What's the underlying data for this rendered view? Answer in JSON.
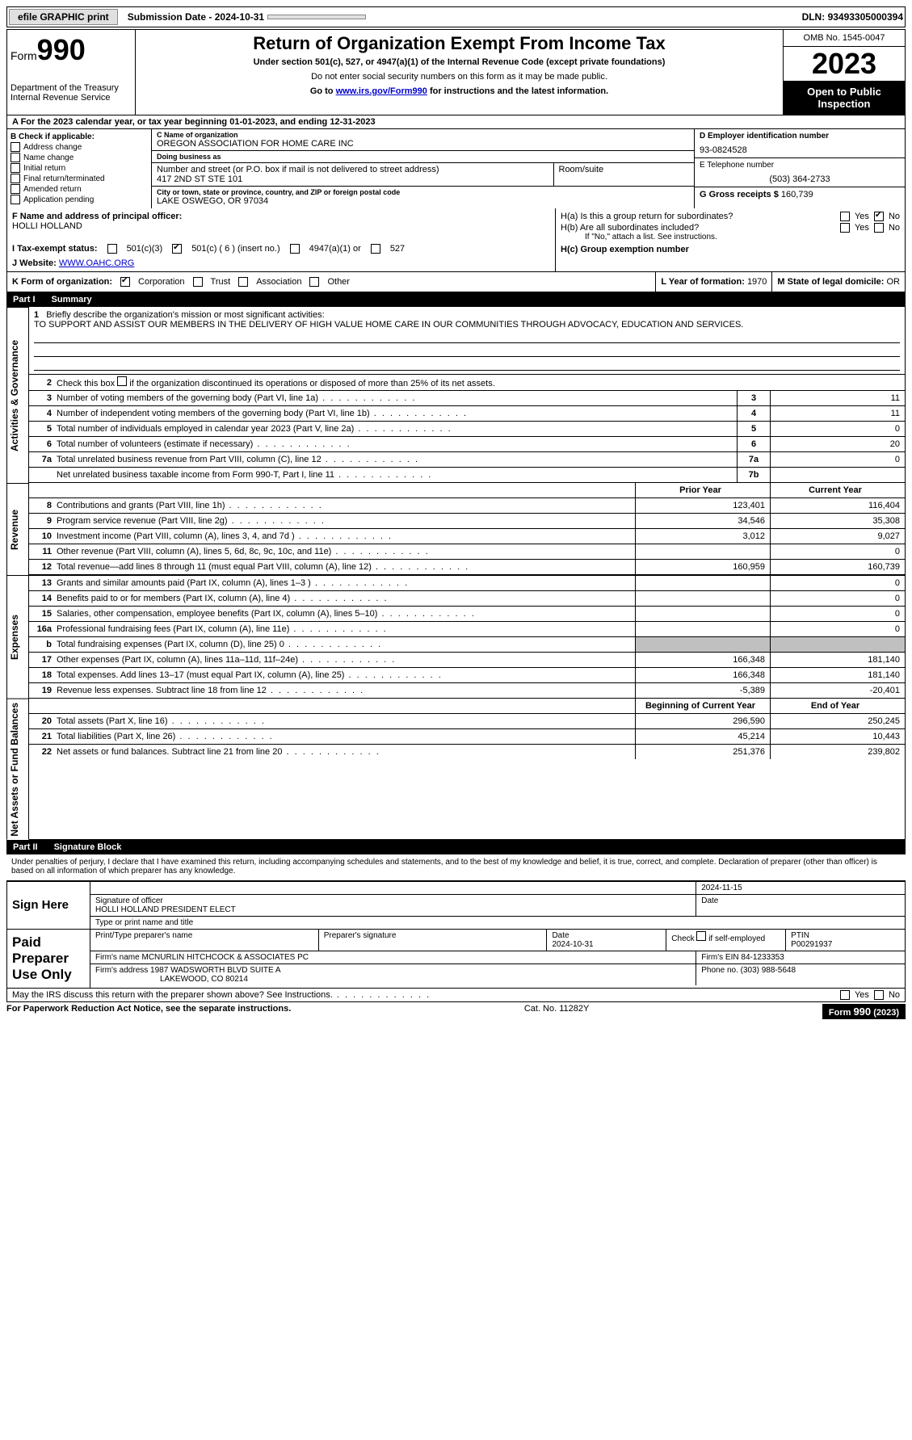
{
  "topbar": {
    "efile": "efile GRAPHIC print",
    "submission_label": "Submission Date - ",
    "submission_date": "2024-10-31",
    "dln_label": "DLN: ",
    "dln": "93493305000394"
  },
  "header": {
    "form_label": "Form",
    "form_number": "990",
    "title": "Return of Organization Exempt From Income Tax",
    "subtitle": "Under section 501(c), 527, or 4947(a)(1) of the Internal Revenue Code (except private foundations)",
    "note1": "Do not enter social security numbers on this form as it may be made public.",
    "note2_pre": "Go to ",
    "note2_link": "www.irs.gov/Form990",
    "note2_post": " for instructions and the latest information.",
    "dept": "Department of the Treasury",
    "irs": "Internal Revenue Service",
    "omb": "OMB No. 1545-0047",
    "year": "2023",
    "inspection": "Open to Public Inspection"
  },
  "rowA": {
    "text_pre": "A For the 2023 calendar year, or tax year beginning ",
    "begin": "01-01-2023",
    "mid": ", and ending ",
    "end": "12-31-2023"
  },
  "colB": {
    "label": "B Check if applicable:",
    "opts": [
      "Address change",
      "Name change",
      "Initial return",
      "Final return/terminated",
      "Amended return",
      "Application pending"
    ]
  },
  "colC": {
    "name_label": "C Name of organization",
    "name": "OREGON ASSOCIATION FOR HOME CARE INC",
    "dba_label": "Doing business as",
    "dba": "",
    "street_label": "Number and street (or P.O. box if mail is not delivered to street address)",
    "room_label": "Room/suite",
    "street": "417 2ND ST STE 101",
    "city_label": "City or town, state or province, country, and ZIP or foreign postal code",
    "city": "LAKE OSWEGO, OR  97034"
  },
  "colD": {
    "ein_label": "D Employer identification number",
    "ein": "93-0824528",
    "phone_label": "E Telephone number",
    "phone": "(503) 364-2733",
    "gross_label": "G Gross receipts $ ",
    "gross": "160,739"
  },
  "rowF": {
    "label": "F Name and address of principal officer:",
    "name": "HOLLI HOLLAND",
    "ha": "H(a)  Is this a group return for subordinates?",
    "hb": "H(b)  Are all subordinates included?",
    "hb_note": "If \"No,\" attach a list. See instructions.",
    "hc": "H(c)  Group exemption number ",
    "yes": "Yes",
    "no": "No"
  },
  "rowI": {
    "label": "I  Tax-exempt status:",
    "opt1": "501(c)(3)",
    "opt2": "501(c) ( 6 ) (insert no.)",
    "opt3": "4947(a)(1) or",
    "opt4": "527"
  },
  "rowJ": {
    "label": "J  Website: ",
    "url": "WWW.OAHC.ORG"
  },
  "rowK": {
    "label": "K Form of organization:",
    "opts": [
      "Corporation",
      "Trust",
      "Association",
      "Other"
    ],
    "l_label": "L Year of formation: ",
    "l_val": "1970",
    "m_label": "M State of legal domicile: ",
    "m_val": "OR"
  },
  "parts": {
    "p1": "Part I",
    "p1_title": "Summary",
    "p2": "Part II",
    "p2_title": "Signature Block"
  },
  "summary": {
    "q1": "Briefly describe the organization's mission or most significant activities:",
    "mission": "TO SUPPORT AND ASSIST OUR MEMBERS IN THE DELIVERY OF HIGH VALUE HOME CARE IN OUR COMMUNITIES THROUGH ADVOCACY, EDUCATION AND SERVICES.",
    "q2": "Check this box      if the organization discontinued its operations or disposed of more than 25% of its net assets.",
    "lines_ag": [
      {
        "n": "3",
        "d": "Number of voting members of the governing body (Part VI, line 1a)",
        "box": "3",
        "v": "11"
      },
      {
        "n": "4",
        "d": "Number of independent voting members of the governing body (Part VI, line 1b)",
        "box": "4",
        "v": "11"
      },
      {
        "n": "5",
        "d": "Total number of individuals employed in calendar year 2023 (Part V, line 2a)",
        "box": "5",
        "v": "0"
      },
      {
        "n": "6",
        "d": "Total number of volunteers (estimate if necessary)",
        "box": "6",
        "v": "20"
      },
      {
        "n": "7a",
        "d": "Total unrelated business revenue from Part VIII, column (C), line 12",
        "box": "7a",
        "v": "0"
      },
      {
        "n": "",
        "d": "Net unrelated business taxable income from Form 990-T, Part I, line 11",
        "box": "7b",
        "v": ""
      }
    ],
    "prior_year": "Prior Year",
    "current_year": "Current Year",
    "lines_rev": [
      {
        "n": "8",
        "d": "Contributions and grants (Part VIII, line 1h)",
        "py": "123,401",
        "cy": "116,404"
      },
      {
        "n": "9",
        "d": "Program service revenue (Part VIII, line 2g)",
        "py": "34,546",
        "cy": "35,308"
      },
      {
        "n": "10",
        "d": "Investment income (Part VIII, column (A), lines 3, 4, and 7d )",
        "py": "3,012",
        "cy": "9,027"
      },
      {
        "n": "11",
        "d": "Other revenue (Part VIII, column (A), lines 5, 6d, 8c, 9c, 10c, and 11e)",
        "py": "",
        "cy": "0"
      },
      {
        "n": "12",
        "d": "Total revenue—add lines 8 through 11 (must equal Part VIII, column (A), line 12)",
        "py": "160,959",
        "cy": "160,739"
      }
    ],
    "lines_exp": [
      {
        "n": "13",
        "d": "Grants and similar amounts paid (Part IX, column (A), lines 1–3 )",
        "py": "",
        "cy": "0"
      },
      {
        "n": "14",
        "d": "Benefits paid to or for members (Part IX, column (A), line 4)",
        "py": "",
        "cy": "0"
      },
      {
        "n": "15",
        "d": "Salaries, other compensation, employee benefits (Part IX, column (A), lines 5–10)",
        "py": "",
        "cy": "0"
      },
      {
        "n": "16a",
        "d": "Professional fundraising fees (Part IX, column (A), line 11e)",
        "py": "",
        "cy": "0"
      },
      {
        "n": "b",
        "d": "Total fundraising expenses (Part IX, column (D), line 25) 0",
        "py": "grey",
        "cy": "grey"
      },
      {
        "n": "17",
        "d": "Other expenses (Part IX, column (A), lines 11a–11d, 11f–24e)",
        "py": "166,348",
        "cy": "181,140"
      },
      {
        "n": "18",
        "d": "Total expenses. Add lines 13–17 (must equal Part IX, column (A), line 25)",
        "py": "166,348",
        "cy": "181,140"
      },
      {
        "n": "19",
        "d": "Revenue less expenses. Subtract line 18 from line 12",
        "py": "-5,389",
        "cy": "-20,401"
      }
    ],
    "begin_year": "Beginning of Current Year",
    "end_year": "End of Year",
    "lines_na": [
      {
        "n": "20",
        "d": "Total assets (Part X, line 16)",
        "py": "296,590",
        "cy": "250,245"
      },
      {
        "n": "21",
        "d": "Total liabilities (Part X, line 26)",
        "py": "45,214",
        "cy": "10,443"
      },
      {
        "n": "22",
        "d": "Net assets or fund balances. Subtract line 21 from line 20",
        "py": "251,376",
        "cy": "239,802"
      }
    ]
  },
  "vtabs": {
    "ag": "Activities & Governance",
    "rev": "Revenue",
    "exp": "Expenses",
    "na": "Net Assets or Fund Balances"
  },
  "sig": {
    "perjury": "Under penalties of perjury, I declare that I have examined this return, including accompanying schedules and statements, and to the best of my knowledge and belief, it is true, correct, and complete. Declaration of preparer (other than officer) is based on all information of which preparer has any knowledge.",
    "sign_here": "Sign Here",
    "sig_officer_label": "Signature of officer",
    "sig_date": "2024-11-15",
    "officer_name": "HOLLI HOLLAND  PRESIDENT ELECT",
    "type_name_label": "Type or print name and title",
    "date_label": "Date",
    "paid": "Paid Preparer Use Only",
    "prep_name_label": "Print/Type preparer's name",
    "prep_sig_label": "Preparer's signature",
    "prep_date": "2024-10-31",
    "check_if": "Check        if self-employed",
    "ptin_label": "PTIN",
    "ptin": "P00291937",
    "firm_name_label": "Firm's name    ",
    "firm_name": "MCNURLIN HITCHCOCK & ASSOCIATES PC",
    "firm_ein_label": "Firm's EIN  ",
    "firm_ein": "84-1233353",
    "firm_addr_label": "Firm's address ",
    "firm_addr1": "1987 WADSWORTH BLVD SUITE A",
    "firm_addr2": "LAKEWOOD, CO  80214",
    "phone_label": "Phone no. ",
    "phone": "(303) 988-5648",
    "discuss": "May the IRS discuss this return with the preparer shown above? See Instructions."
  },
  "footer": {
    "paperwork": "For Paperwork Reduction Act Notice, see the separate instructions.",
    "cat": "Cat. No. 11282Y",
    "form": "Form 990 (2023)"
  }
}
